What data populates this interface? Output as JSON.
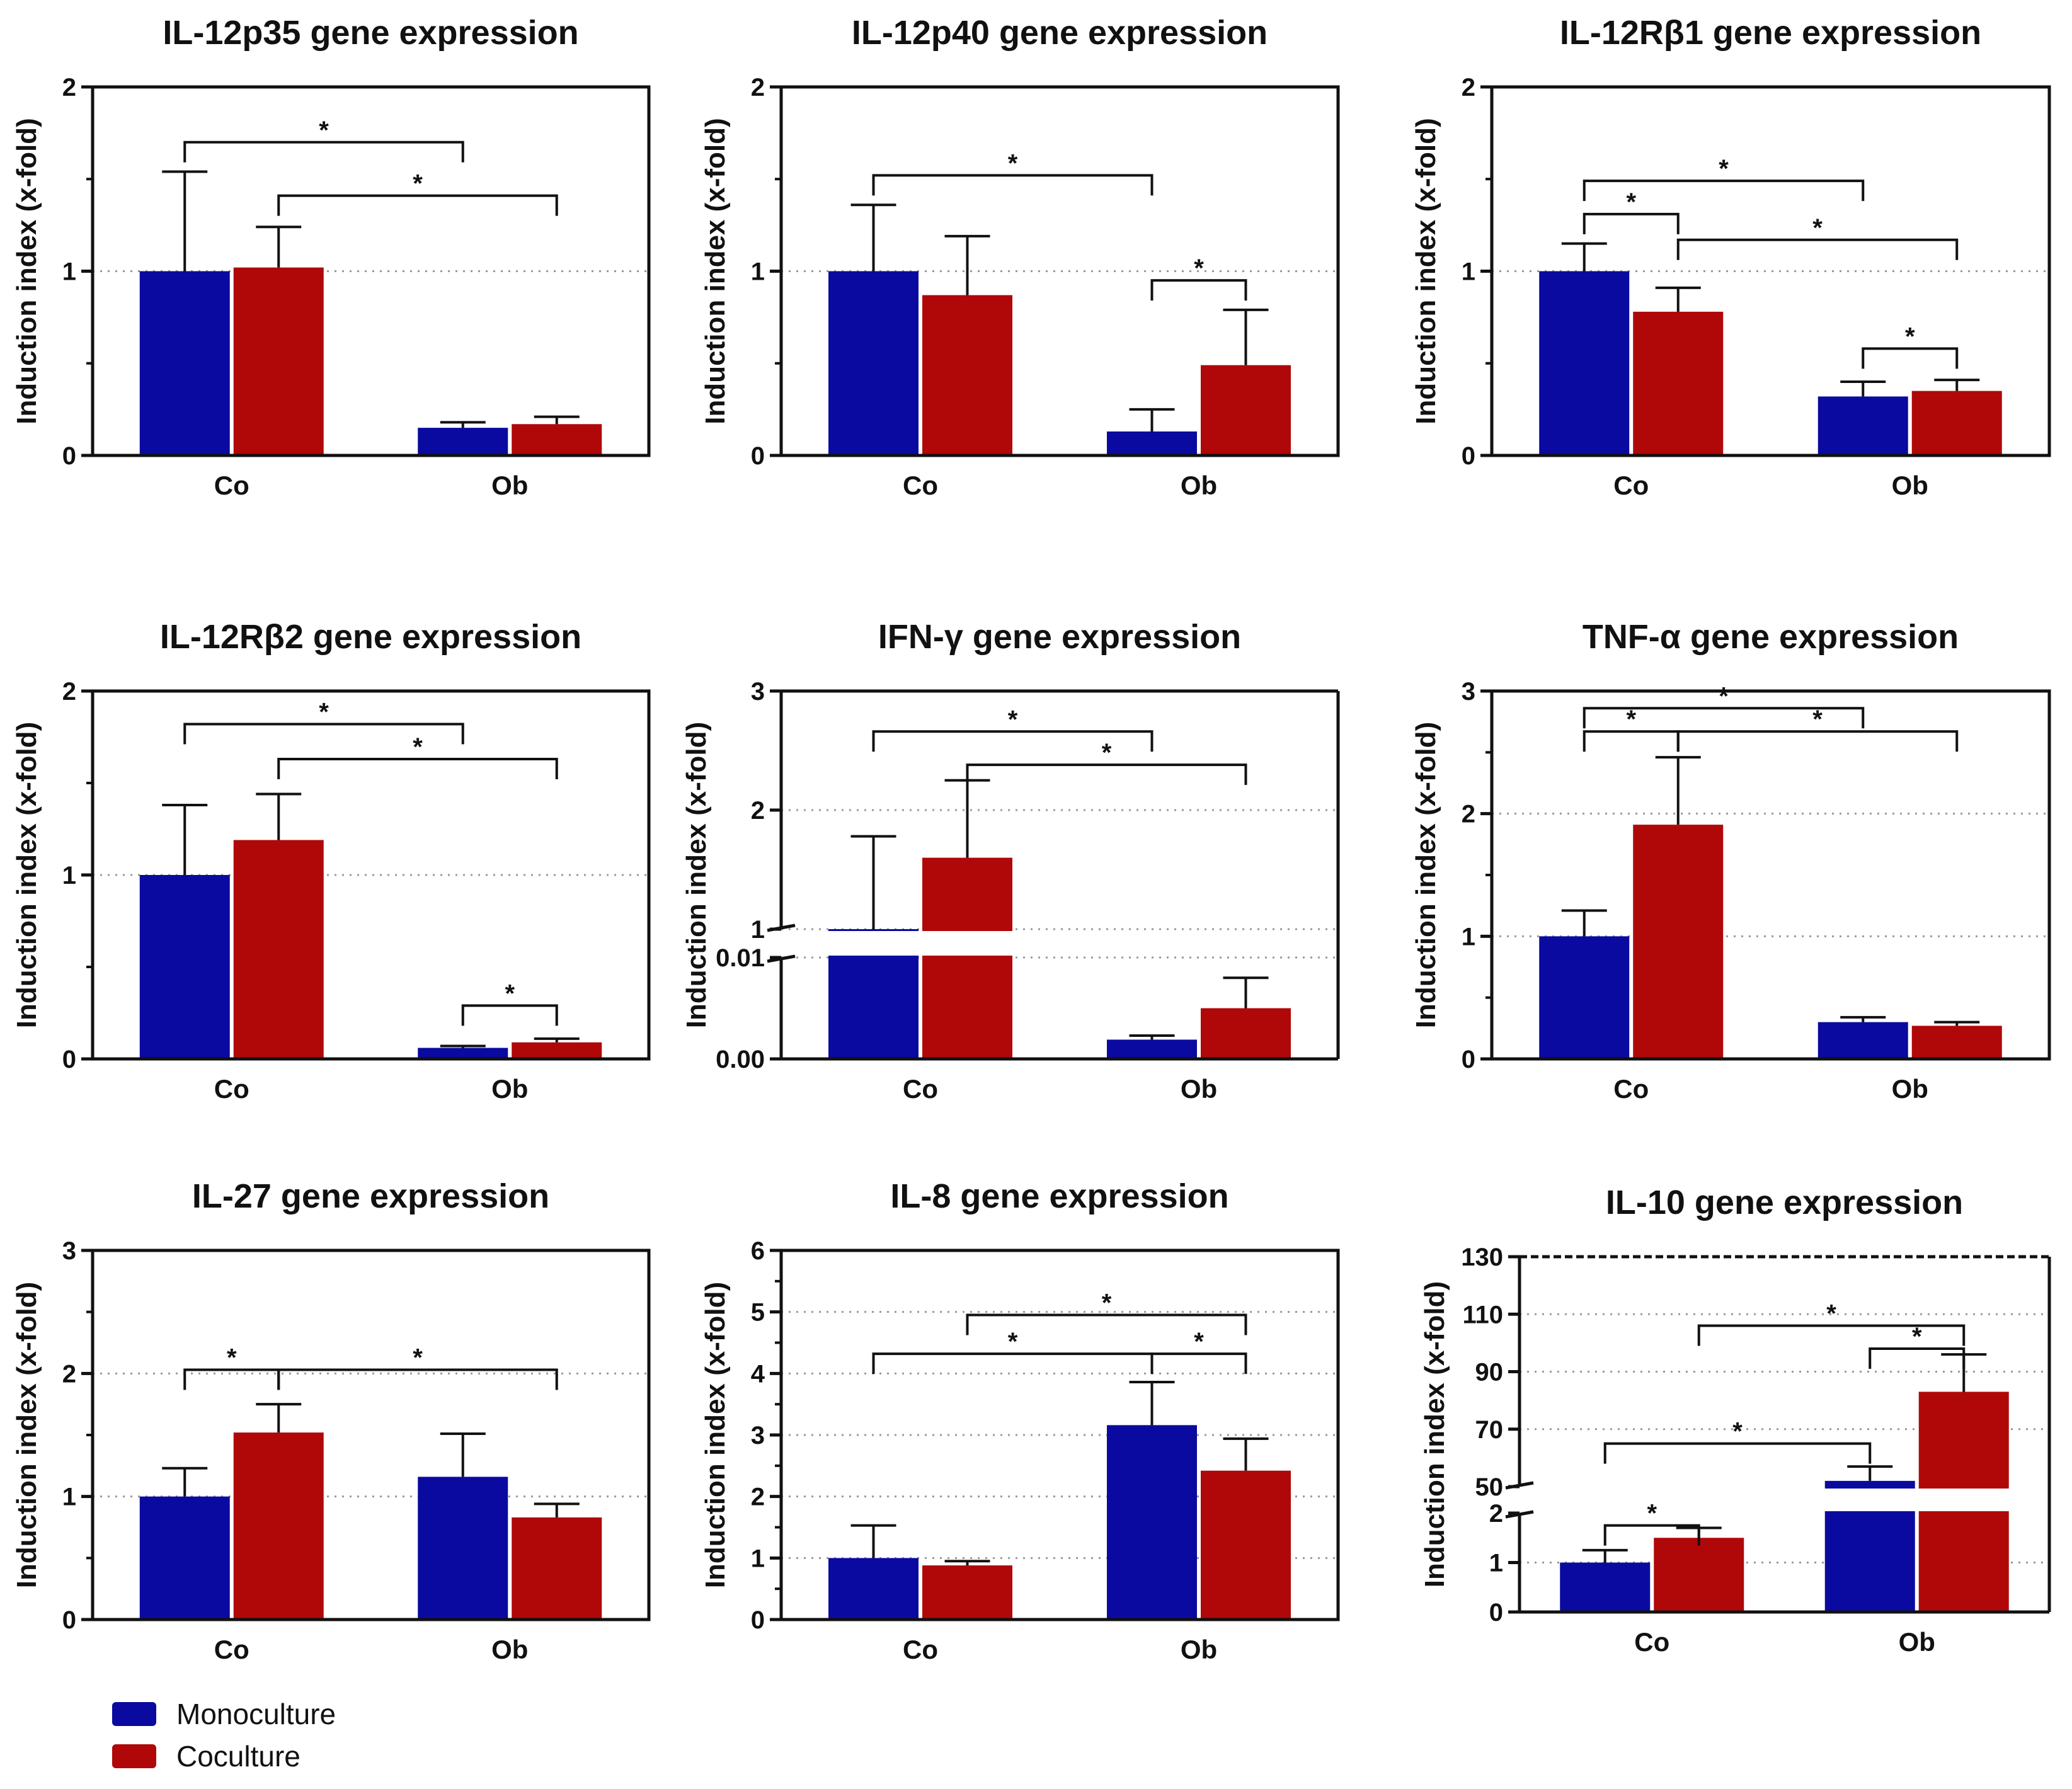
{
  "colors": {
    "mono": "#0A0AA0",
    "co": "#B00808",
    "axis": "#111111",
    "grid": "#9A9A9A"
  },
  "legend": [
    {
      "label": "Monoculture",
      "color": "#0A0AA0"
    },
    {
      "label": "Coculture",
      "color": "#B00808"
    }
  ],
  "chart_data": [
    {
      "id": "il12p35",
      "type": "bar",
      "title": "IL-12p35 gene expression",
      "ylabel": "Induction index (x-fold)",
      "categories": [
        "Co",
        "Ob"
      ],
      "ylim": [
        0,
        2
      ],
      "ticks": [
        "0",
        "1",
        "2"
      ],
      "tickValues": [
        0,
        1,
        2
      ],
      "gridlines": [
        1
      ],
      "series": [
        {
          "name": "Monoculture",
          "values": [
            1.0,
            0.15
          ],
          "errors": [
            0.54,
            0.03
          ]
        },
        {
          "name": "Coculture",
          "values": [
            1.02,
            0.17
          ],
          "errors": [
            0.22,
            0.04
          ]
        }
      ],
      "brackets": [
        {
          "from": 0,
          "to": 2,
          "y": 1.7,
          "label": "*"
        },
        {
          "from": 1,
          "to": 3,
          "y": 1.41,
          "label": "*"
        }
      ]
    },
    {
      "id": "il12p40",
      "type": "bar",
      "title": "IL-12p40 gene expression",
      "ylabel": "Induction index (x-fold)",
      "categories": [
        "Co",
        "Ob"
      ],
      "ylim": [
        0,
        2
      ],
      "ticks": [
        "0",
        "1",
        "2"
      ],
      "tickValues": [
        0,
        1,
        2
      ],
      "gridlines": [
        1
      ],
      "series": [
        {
          "name": "Monoculture",
          "values": [
            1.0,
            0.13
          ],
          "errors": [
            0.36,
            0.12
          ]
        },
        {
          "name": "Coculture",
          "values": [
            0.87,
            0.49
          ],
          "errors": [
            0.32,
            0.3
          ]
        }
      ],
      "brackets": [
        {
          "from": 0,
          "to": 2,
          "y": 1.52,
          "label": "*"
        },
        {
          "from": 2,
          "to": 3,
          "y": 0.95,
          "label": "*"
        }
      ]
    },
    {
      "id": "il12rb1",
      "type": "bar",
      "title": "IL-12Rβ1 gene expression",
      "ylabel": "Induction index (x-fold)",
      "categories": [
        "Co",
        "Ob"
      ],
      "ylim": [
        0,
        2
      ],
      "ticks": [
        "0",
        "1",
        "2"
      ],
      "tickValues": [
        0,
        1,
        2
      ],
      "gridlines": [
        1
      ],
      "series": [
        {
          "name": "Monoculture",
          "values": [
            1.0,
            0.32
          ],
          "errors": [
            0.15,
            0.08
          ]
        },
        {
          "name": "Coculture",
          "values": [
            0.78,
            0.35
          ],
          "errors": [
            0.13,
            0.06
          ]
        }
      ],
      "brackets": [
        {
          "from": 0,
          "to": 2,
          "y": 1.49,
          "label": "*"
        },
        {
          "from": 0,
          "to": 1,
          "y": 1.31,
          "label": "*"
        },
        {
          "from": 1,
          "to": 3,
          "y": 1.17,
          "label": "*"
        },
        {
          "from": 2,
          "to": 3,
          "y": 0.58,
          "label": "*"
        }
      ]
    },
    {
      "id": "il12rb2",
      "type": "bar",
      "title": "IL-12Rβ2 gene expression",
      "ylabel": "Induction index (x-fold)",
      "categories": [
        "Co",
        "Ob"
      ],
      "ylim": [
        0,
        2
      ],
      "ticks": [
        "0",
        "1",
        "2"
      ],
      "tickValues": [
        0,
        1,
        2
      ],
      "gridlines": [
        1
      ],
      "series": [
        {
          "name": "Monoculture",
          "values": [
            1.0,
            0.06
          ],
          "errors": [
            0.38,
            0.01
          ]
        },
        {
          "name": "Coculture",
          "values": [
            1.19,
            0.09
          ],
          "errors": [
            0.25,
            0.02
          ]
        }
      ],
      "brackets": [
        {
          "from": 0,
          "to": 2,
          "y": 1.82,
          "label": "*"
        },
        {
          "from": 1,
          "to": 3,
          "y": 1.63,
          "label": "*"
        },
        {
          "from": 2,
          "to": 3,
          "y": 0.29,
          "label": "*"
        }
      ]
    },
    {
      "id": "ifng",
      "type": "bar",
      "title": "IFN-γ gene expression",
      "ylabel": "Induction index (x-fold)",
      "categories": [
        "Co",
        "Ob"
      ],
      "brokenAxis": true,
      "lowerRange": [
        0,
        0.01
      ],
      "upperRange": [
        1,
        3
      ],
      "ticks": [
        "0.00",
        "0.01",
        "1",
        "2",
        "3"
      ],
      "series": [
        {
          "name": "Monoculture",
          "values": [
            1.0,
            0.0019
          ],
          "errors": [
            0.78,
            0.0004
          ]
        },
        {
          "name": "Coculture",
          "values": [
            1.6,
            0.005
          ],
          "errors": [
            0.65,
            0.003
          ]
        }
      ],
      "brackets": [
        {
          "from": 0,
          "to": 2,
          "y": 2.66,
          "label": "*"
        },
        {
          "from": 1,
          "to": 3,
          "y": 2.38,
          "label": "*"
        }
      ]
    },
    {
      "id": "tnfa",
      "type": "bar",
      "title": "TNF-α gene expression",
      "ylabel": "Induction index (x-fold)",
      "categories": [
        "Co",
        "Ob"
      ],
      "ylim": [
        0,
        3
      ],
      "ticks": [
        "0",
        "1",
        "2",
        "3"
      ],
      "tickValues": [
        0,
        1,
        2,
        3
      ],
      "gridlines": [
        1,
        2
      ],
      "series": [
        {
          "name": "Monoculture",
          "values": [
            1.0,
            0.3
          ],
          "errors": [
            0.21,
            0.04
          ]
        },
        {
          "name": "Coculture",
          "values": [
            1.91,
            0.27
          ],
          "errors": [
            0.55,
            0.03
          ]
        }
      ],
      "brackets": [
        {
          "from": 0,
          "to": 2,
          "y": 2.86,
          "label": "*"
        },
        {
          "from": 0,
          "to": 1,
          "y": 2.67,
          "label": "*"
        },
        {
          "from": 1,
          "to": 3,
          "y": 2.67,
          "label": "*"
        }
      ]
    },
    {
      "id": "il27",
      "type": "bar",
      "title": "IL-27 gene expression",
      "ylabel": "Induction index (x-fold)",
      "categories": [
        "Co",
        "Ob"
      ],
      "ylim": [
        0,
        3
      ],
      "ticks": [
        "0",
        "1",
        "2",
        "3"
      ],
      "tickValues": [
        0,
        1,
        2,
        3
      ],
      "gridlines": [
        1,
        2
      ],
      "series": [
        {
          "name": "Monoculture",
          "values": [
            1.0,
            1.16
          ],
          "errors": [
            0.23,
            0.35
          ]
        },
        {
          "name": "Coculture",
          "values": [
            1.52,
            0.83
          ],
          "errors": [
            0.23,
            0.11
          ]
        }
      ],
      "brackets": [
        {
          "from": 0,
          "to": 1,
          "y": 2.03,
          "label": "*"
        },
        {
          "from": 1,
          "to": 3,
          "y": 2.03,
          "label": "*"
        }
      ]
    },
    {
      "id": "il8",
      "type": "bar",
      "title": "IL-8 gene expression",
      "ylabel": "Induction index (x-fold)",
      "categories": [
        "Co",
        "Ob"
      ],
      "ylim": [
        0,
        6
      ],
      "ticks": [
        "0",
        "1",
        "2",
        "3",
        "4",
        "5",
        "6"
      ],
      "tickValues": [
        0,
        1,
        2,
        3,
        4,
        5,
        6
      ],
      "gridlines": [
        1,
        2,
        3,
        4,
        5
      ],
      "series": [
        {
          "name": "Monoculture",
          "values": [
            1.0,
            3.16
          ],
          "errors": [
            0.53,
            0.7
          ]
        },
        {
          "name": "Coculture",
          "values": [
            0.88,
            2.42
          ],
          "errors": [
            0.07,
            0.52
          ]
        }
      ],
      "brackets": [
        {
          "from": 1,
          "to": 3,
          "y": 4.95,
          "label": "*"
        },
        {
          "from": 0,
          "to": 2,
          "y": 4.32,
          "label": "*"
        },
        {
          "from": 2,
          "to": 3,
          "y": 4.32,
          "label": "*"
        }
      ]
    },
    {
      "id": "il10",
      "type": "bar",
      "title": "IL-10 gene expression",
      "ylabel": "Induction index (x-fold)",
      "categories": [
        "Co",
        "Ob"
      ],
      "brokenAxis": true,
      "lowerRange": [
        0,
        2
      ],
      "upperRange": [
        50,
        130
      ],
      "ticks": [
        "0",
        "1",
        "2",
        "50",
        "70",
        "90",
        "110",
        "130"
      ],
      "series": [
        {
          "name": "Monoculture",
          "values": [
            1.0,
            52
          ],
          "errors": [
            0.25,
            5
          ]
        },
        {
          "name": "Coculture",
          "values": [
            1.5,
            83
          ],
          "errors": [
            0.2,
            13
          ]
        }
      ],
      "brackets": [
        {
          "from": 1,
          "to": 3,
          "y": 106,
          "label": "*"
        },
        {
          "from": 2,
          "to": 3,
          "y": 98,
          "label": "*"
        },
        {
          "from": 0,
          "to": 2,
          "y": 65,
          "label": "*"
        },
        {
          "from": 0,
          "to": 1,
          "y": 1.75,
          "label": "*"
        }
      ]
    }
  ]
}
